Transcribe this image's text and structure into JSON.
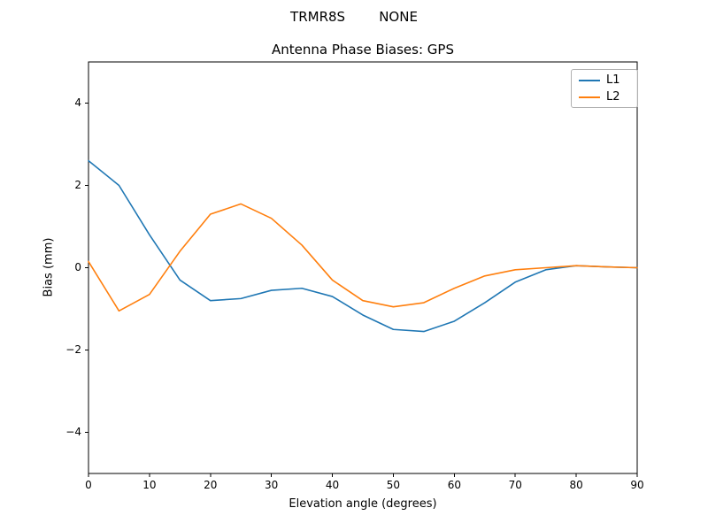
{
  "chart_data": {
    "type": "line",
    "suptitle": "TRMR8S        NONE",
    "title": "Antenna Phase Biases: GPS",
    "xlabel": "Elevation angle (degrees)",
    "ylabel": "Bias (mm)",
    "xlim": [
      0,
      90
    ],
    "ylim": [
      -5,
      5
    ],
    "xticks": [
      0,
      10,
      20,
      30,
      40,
      50,
      60,
      70,
      80,
      90
    ],
    "yticks": [
      -4,
      -2,
      0,
      2,
      4
    ],
    "grid": false,
    "legend_position": "upper right",
    "x": [
      0,
      5,
      10,
      15,
      20,
      25,
      30,
      35,
      40,
      45,
      50,
      55,
      60,
      65,
      70,
      75,
      80,
      85,
      90
    ],
    "series": [
      {
        "name": "L1",
        "color": "#1f77b4",
        "values": [
          2.6,
          2.0,
          0.8,
          -0.3,
          -0.8,
          -0.75,
          -0.55,
          -0.5,
          -0.7,
          -1.15,
          -1.5,
          -1.55,
          -1.3,
          -0.85,
          -0.35,
          -0.05,
          0.05,
          0.02,
          0.0
        ]
      },
      {
        "name": "L2",
        "color": "#ff7f0e",
        "values": [
          0.15,
          -1.05,
          -0.65,
          0.4,
          1.3,
          1.55,
          1.2,
          0.55,
          -0.3,
          -0.8,
          -0.95,
          -0.85,
          -0.5,
          -0.2,
          -0.05,
          0.0,
          0.05,
          0.02,
          0.0
        ]
      }
    ]
  }
}
